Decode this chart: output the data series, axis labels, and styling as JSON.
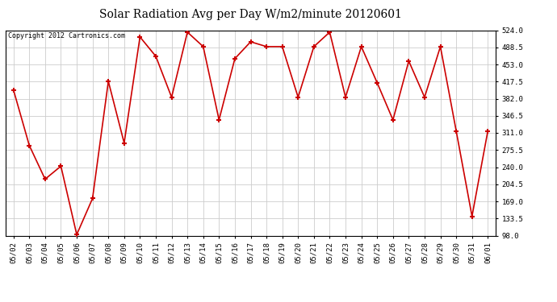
{
  "title": "Solar Radiation Avg per Day W/m2/minute 20120601",
  "copyright": "Copyright 2012 Cartronics.com",
  "dates": [
    "05/02",
    "05/03",
    "05/04",
    "05/05",
    "05/06",
    "05/07",
    "05/08",
    "05/09",
    "05/10",
    "05/11",
    "05/12",
    "05/13",
    "05/14",
    "05/15",
    "05/16",
    "05/17",
    "05/18",
    "05/19",
    "05/20",
    "05/21",
    "05/22",
    "05/23",
    "05/24",
    "05/25",
    "05/26",
    "05/27",
    "05/28",
    "05/29",
    "05/30",
    "05/31",
    "06/01"
  ],
  "values": [
    400,
    285,
    215,
    242,
    100,
    175,
    418,
    290,
    510,
    470,
    385,
    520,
    490,
    338,
    465,
    500,
    490,
    490,
    385,
    490,
    520,
    385,
    490,
    415,
    338,
    460,
    385,
    490,
    315,
    138,
    315
  ],
  "line_color": "#cc0000",
  "marker_color": "#cc0000",
  "background_color": "#ffffff",
  "grid_color": "#cccccc",
  "title_fontsize": 10,
  "copyright_fontsize": 6,
  "tick_fontsize": 6.5,
  "ylim_min": 98.0,
  "ylim_max": 524.0,
  "yticks": [
    98.0,
    133.5,
    169.0,
    204.5,
    240.0,
    275.5,
    311.0,
    346.5,
    382.0,
    417.5,
    453.0,
    488.5,
    524.0
  ]
}
